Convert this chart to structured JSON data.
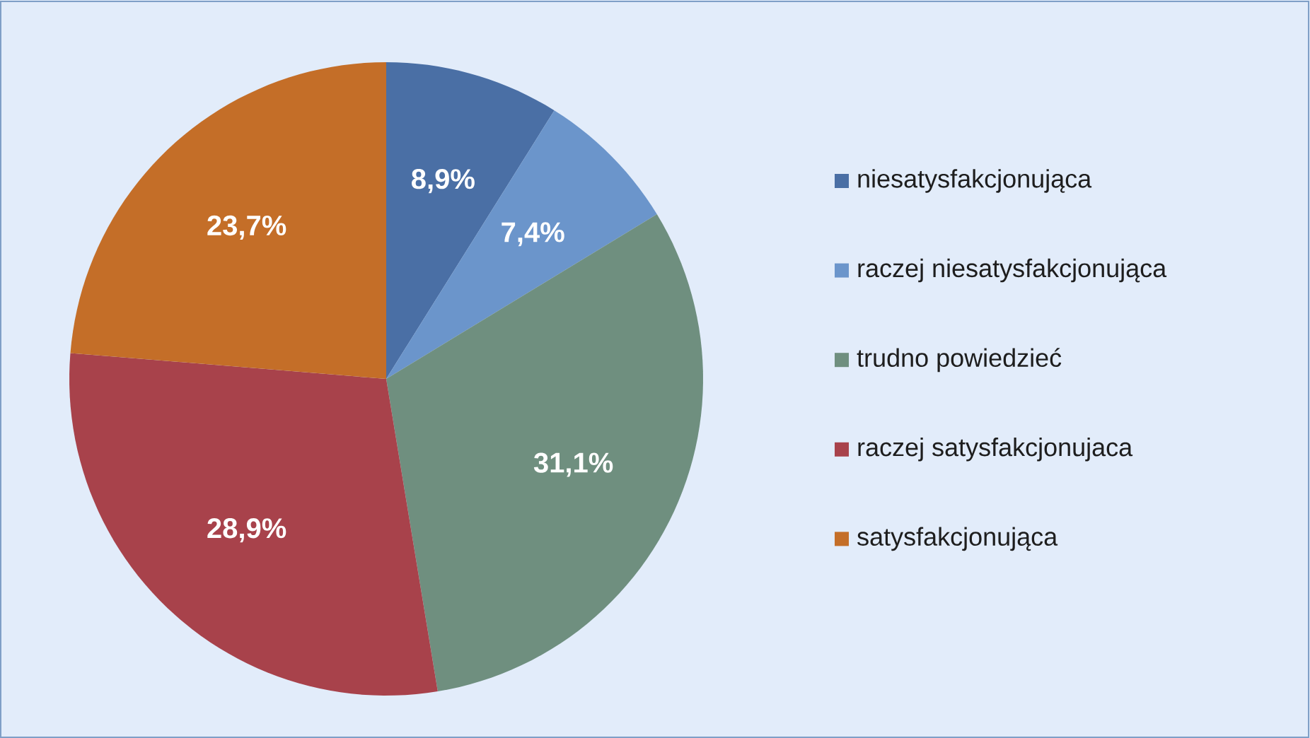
{
  "chart_data": {
    "type": "pie",
    "categories": [
      "niesatysfakcjonująca",
      "raczej niesatysfakcjonująca",
      "trudno powiedzieć",
      "raczej satysfakcjonujaca",
      "satysfakcjonująca"
    ],
    "values": [
      8.9,
      7.4,
      31.1,
      28.9,
      23.7
    ],
    "colors": [
      "#4a6fa5",
      "#6b95cb",
      "#6f8f7f",
      "#a8424b",
      "#c46e28"
    ],
    "value_labels": [
      "8,9%",
      "7,4%",
      "31,1%",
      "28,9%",
      "23,7%"
    ],
    "legend": "right"
  }
}
